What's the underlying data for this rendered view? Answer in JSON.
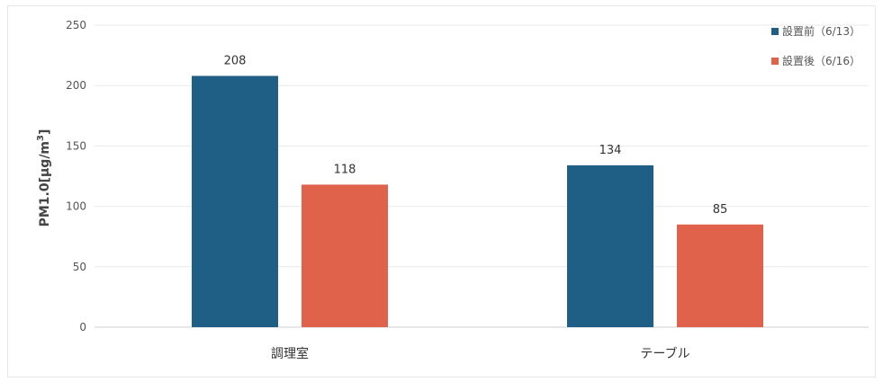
{
  "chart_data": {
    "type": "bar",
    "categories": [
      "調理室",
      "テーブル"
    ],
    "series": [
      {
        "name": "設置前（6/13）",
        "values": [
          208,
          134
        ],
        "color": "#1f5f86"
      },
      {
        "name": "設置後（6/16）",
        "values": [
          118,
          85
        ],
        "color": "#e0624a"
      }
    ],
    "ylabel_main": "PM1.0[μg/m",
    "ylabel_sup": "3",
    "ylabel_end": "]",
    "ylim": [
      0,
      250
    ],
    "yticks": [
      0,
      50,
      100,
      150,
      200,
      250
    ],
    "legend_position": "top-right",
    "grid": true
  }
}
